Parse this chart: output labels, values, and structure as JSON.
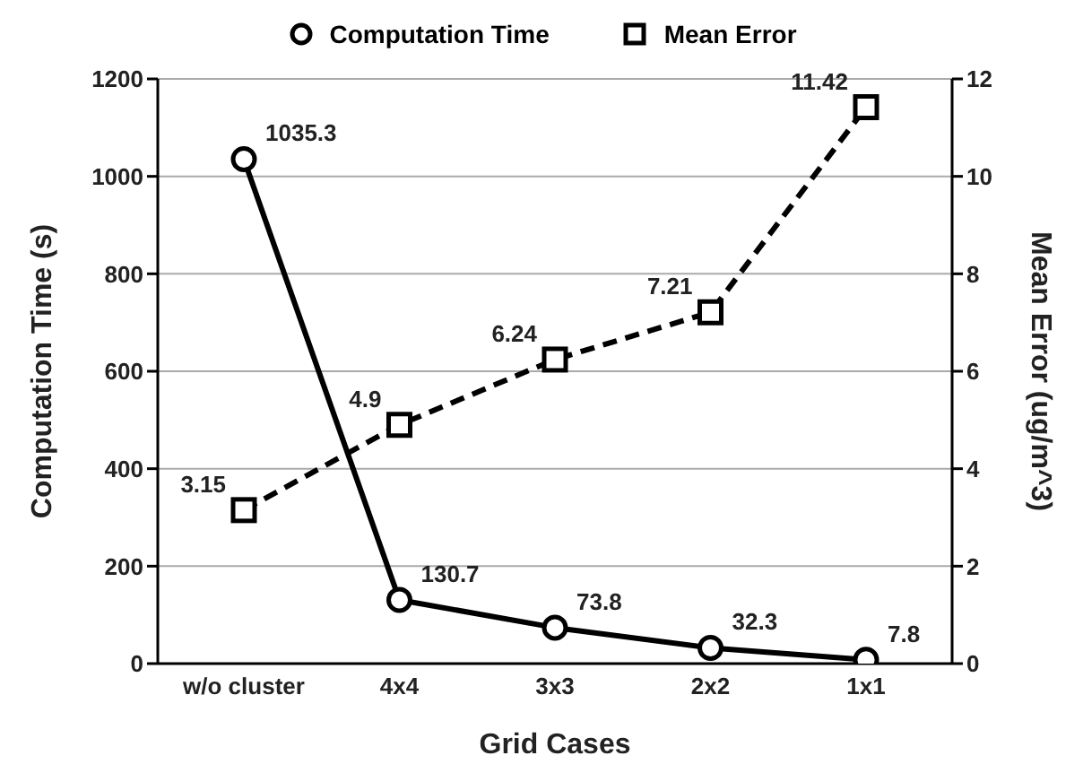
{
  "chart_data": {
    "type": "line",
    "xlabel": "Grid Cases",
    "ylabel": "Computation Time (s)",
    "y2label": "Mean Error (ug/m^3)",
    "categories": [
      "w/o cluster",
      "4x4",
      "3x3",
      "2x2",
      "1x1"
    ],
    "series": [
      {
        "name": "Computation Time",
        "color": "#000000",
        "values": [
          1035.3,
          130.7,
          73.8,
          32.3,
          7.8
        ],
        "marker": "circle",
        "line_style": "solid"
      },
      {
        "name": "Mean Error",
        "color": "#000000",
        "values": [
          3.15,
          4.9,
          6.24,
          7.21,
          11.42
        ],
        "marker": "square",
        "line_style": "dashed",
        "axis": "y2"
      }
    ],
    "ylim": [
      0,
      1200
    ],
    "yticks": [
      0,
      200,
      400,
      600,
      800,
      1000,
      1200
    ],
    "y2lim": [
      0,
      12
    ],
    "y2ticks": [
      0,
      2,
      4,
      6,
      8,
      10,
      12
    ],
    "grid": "y",
    "legend": "top",
    "data_labels": true
  }
}
